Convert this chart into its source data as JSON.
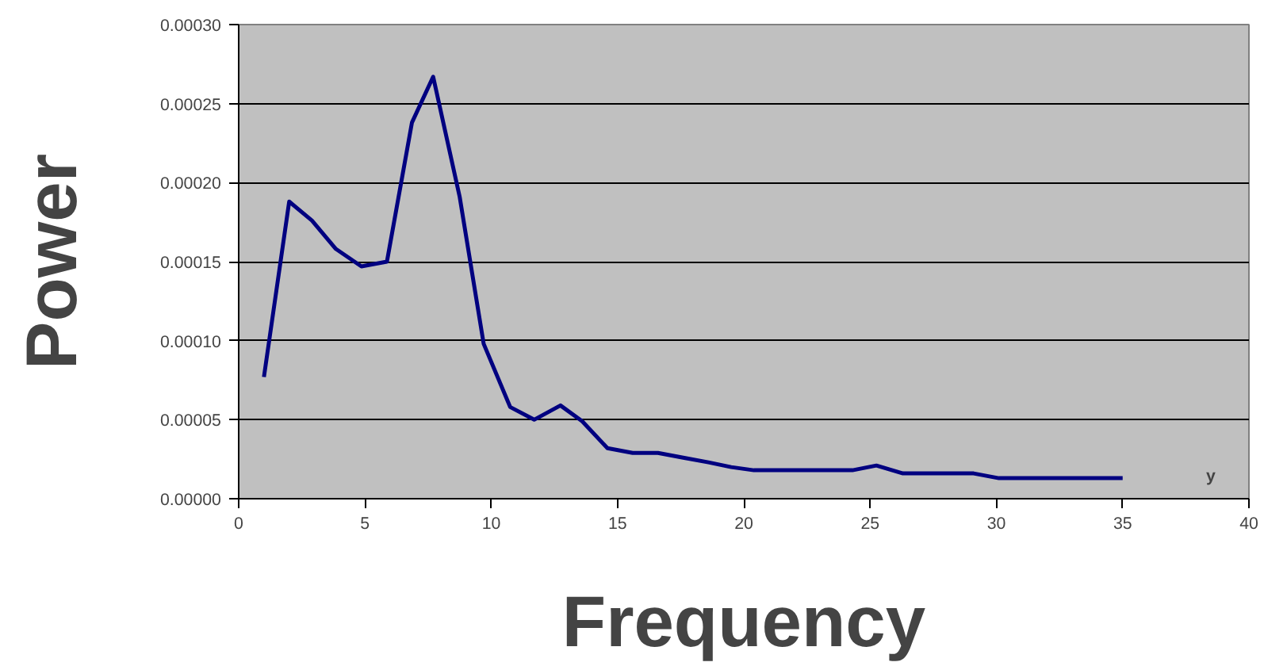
{
  "chart_data": {
    "type": "line",
    "xlabel": "Frequency",
    "ylabel": "Power",
    "annotations": [
      "y"
    ],
    "x": [
      1.0,
      2.0,
      2.9,
      3.85,
      4.86,
      5.87,
      6.86,
      7.7,
      8.75,
      9.7,
      10.75,
      11.7,
      12.74,
      13.6,
      14.6,
      15.6,
      16.6,
      17.6,
      18.6,
      19.5,
      20.4,
      24.3,
      25.25,
      26.3,
      29.1,
      30.1,
      35.0
    ],
    "series": [
      {
        "color": "#000080",
        "values": [
          7.7e-05,
          0.000188,
          0.000176,
          0.000158,
          0.000147,
          0.00015,
          0.000238,
          0.000267,
          0.000191,
          9.8e-05,
          5.8e-05,
          5e-05,
          5.9e-05,
          4.9e-05,
          3.2e-05,
          2.9e-05,
          2.9e-05,
          2.6e-05,
          2.3e-05,
          2e-05,
          1.8e-05,
          1.8e-05,
          2.1e-05,
          1.6e-05,
          1.6e-05,
          1.3e-05,
          1.3e-05
        ]
      }
    ],
    "xlim": [
      0,
      40
    ],
    "xticks": [
      0,
      5,
      10,
      15,
      20,
      25,
      30,
      35,
      40
    ],
    "ylim": [
      0,
      0.0003
    ],
    "yticks": [
      {
        "value": 0,
        "label": "0.00000"
      },
      {
        "value": 5e-05,
        "label": "0.00005"
      },
      {
        "value": 0.0001,
        "label": "0.00010"
      },
      {
        "value": 0.00015,
        "label": "0.00015"
      },
      {
        "value": 0.0002,
        "label": "0.00020"
      },
      {
        "value": 0.00025,
        "label": "0.00025"
      },
      {
        "value": 0.0003,
        "label": "0.00030"
      }
    ],
    "grid": "y",
    "line_style": "solid"
  }
}
